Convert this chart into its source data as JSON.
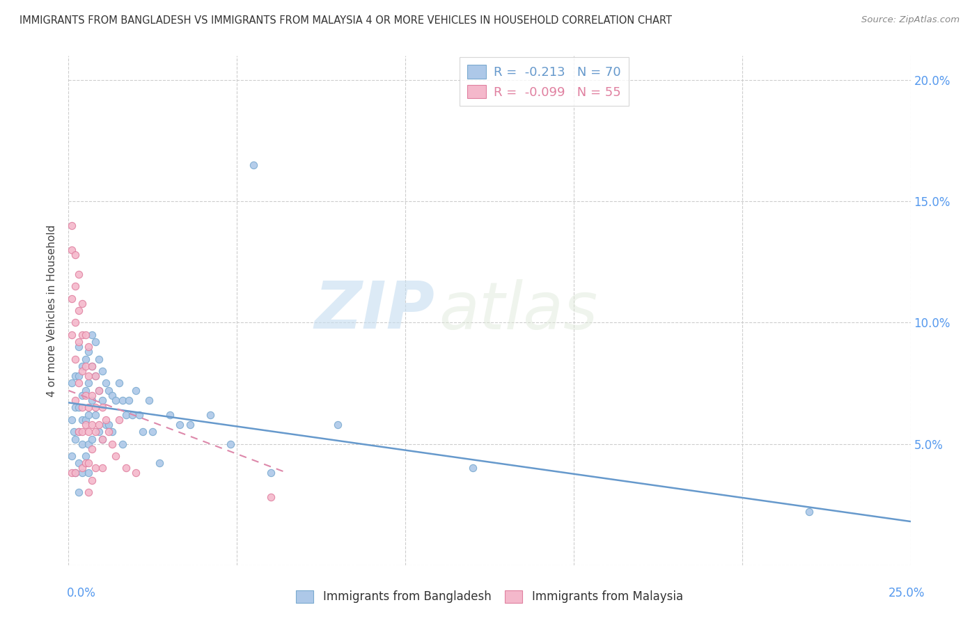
{
  "title": "IMMIGRANTS FROM BANGLADESH VS IMMIGRANTS FROM MALAYSIA 4 OR MORE VEHICLES IN HOUSEHOLD CORRELATION CHART",
  "source": "Source: ZipAtlas.com",
  "ylabel": "4 or more Vehicles in Household",
  "legend_bd": {
    "R": -0.213,
    "N": 70
  },
  "legend_my": {
    "R": -0.099,
    "N": 55
  },
  "xlim": [
    0.0,
    0.25
  ],
  "ylim": [
    0.0,
    0.21
  ],
  "watermark_zip": "ZIP",
  "watermark_atlas": "atlas",
  "background_color": "#ffffff",
  "grid_color": "#c8c8c8",
  "scatter_bd_color": "#adc8e8",
  "scatter_bd_edge": "#7aaad0",
  "scatter_my_color": "#f4b8cb",
  "scatter_my_edge": "#e080a0",
  "line_bd_color": "#6699cc",
  "line_my_color": "#dd88aa",
  "right_axis_color": "#5599ee",
  "bd_x": [
    0.001,
    0.001,
    0.001,
    0.0015,
    0.002,
    0.002,
    0.002,
    0.002,
    0.003,
    0.003,
    0.003,
    0.003,
    0.003,
    0.003,
    0.004,
    0.004,
    0.004,
    0.004,
    0.004,
    0.005,
    0.005,
    0.005,
    0.005,
    0.006,
    0.006,
    0.006,
    0.006,
    0.006,
    0.007,
    0.007,
    0.007,
    0.007,
    0.008,
    0.008,
    0.008,
    0.009,
    0.009,
    0.009,
    0.01,
    0.01,
    0.01,
    0.011,
    0.011,
    0.012,
    0.012,
    0.013,
    0.013,
    0.014,
    0.015,
    0.016,
    0.016,
    0.017,
    0.018,
    0.019,
    0.02,
    0.021,
    0.022,
    0.024,
    0.025,
    0.027,
    0.03,
    0.033,
    0.036,
    0.042,
    0.048,
    0.055,
    0.06,
    0.08,
    0.12,
    0.22
  ],
  "bd_y": [
    0.075,
    0.06,
    0.045,
    0.055,
    0.078,
    0.065,
    0.052,
    0.038,
    0.09,
    0.078,
    0.065,
    0.055,
    0.042,
    0.03,
    0.082,
    0.07,
    0.06,
    0.05,
    0.038,
    0.085,
    0.072,
    0.06,
    0.045,
    0.088,
    0.075,
    0.062,
    0.05,
    0.038,
    0.095,
    0.082,
    0.068,
    0.052,
    0.092,
    0.078,
    0.062,
    0.085,
    0.072,
    0.055,
    0.08,
    0.068,
    0.052,
    0.075,
    0.058,
    0.072,
    0.058,
    0.07,
    0.055,
    0.068,
    0.075,
    0.068,
    0.05,
    0.062,
    0.068,
    0.062,
    0.072,
    0.062,
    0.055,
    0.068,
    0.055,
    0.042,
    0.062,
    0.058,
    0.058,
    0.062,
    0.05,
    0.165,
    0.038,
    0.058,
    0.04,
    0.022
  ],
  "my_x": [
    0.001,
    0.001,
    0.001,
    0.001,
    0.001,
    0.002,
    0.002,
    0.002,
    0.002,
    0.002,
    0.002,
    0.003,
    0.003,
    0.003,
    0.003,
    0.003,
    0.004,
    0.004,
    0.004,
    0.004,
    0.004,
    0.004,
    0.005,
    0.005,
    0.005,
    0.005,
    0.005,
    0.006,
    0.006,
    0.006,
    0.006,
    0.006,
    0.006,
    0.007,
    0.007,
    0.007,
    0.007,
    0.007,
    0.008,
    0.008,
    0.008,
    0.008,
    0.009,
    0.009,
    0.01,
    0.01,
    0.01,
    0.011,
    0.012,
    0.013,
    0.014,
    0.015,
    0.017,
    0.02,
    0.06
  ],
  "my_y": [
    0.14,
    0.13,
    0.11,
    0.095,
    0.038,
    0.128,
    0.115,
    0.1,
    0.085,
    0.068,
    0.038,
    0.12,
    0.105,
    0.092,
    0.075,
    0.055,
    0.108,
    0.095,
    0.08,
    0.065,
    0.055,
    0.04,
    0.095,
    0.082,
    0.07,
    0.058,
    0.042,
    0.09,
    0.078,
    0.065,
    0.055,
    0.042,
    0.03,
    0.082,
    0.07,
    0.058,
    0.048,
    0.035,
    0.078,
    0.065,
    0.055,
    0.04,
    0.072,
    0.058,
    0.065,
    0.052,
    0.04,
    0.06,
    0.055,
    0.05,
    0.045,
    0.06,
    0.04,
    0.038,
    0.028
  ],
  "bd_line_x0": 0.0,
  "bd_line_x1": 0.25,
  "bd_line_y0": 0.067,
  "bd_line_y1": 0.018,
  "my_line_x0": 0.0,
  "my_line_x1": 0.065,
  "my_line_y0": 0.072,
  "my_line_y1": 0.038
}
